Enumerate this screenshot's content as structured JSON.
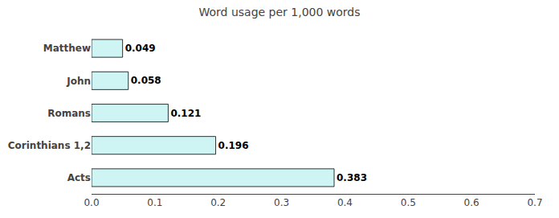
{
  "chart_data": {
    "type": "bar",
    "orientation": "horizontal",
    "title": "Word usage per 1,000 words",
    "categories": [
      "Matthew",
      "John",
      "Romans",
      "Corinthians 1,2",
      "Acts"
    ],
    "values": [
      0.049,
      0.058,
      0.121,
      0.196,
      0.383
    ],
    "color": "#cff4f4",
    "xlim": [
      0,
      0.7
    ],
    "xticks": [
      {
        "value": 0,
        "label": "0.0"
      },
      0.1,
      0.2,
      0.3,
      0.4,
      0.5,
      0.6,
      0.7
    ],
    "data_labels": true,
    "grid": false
  }
}
